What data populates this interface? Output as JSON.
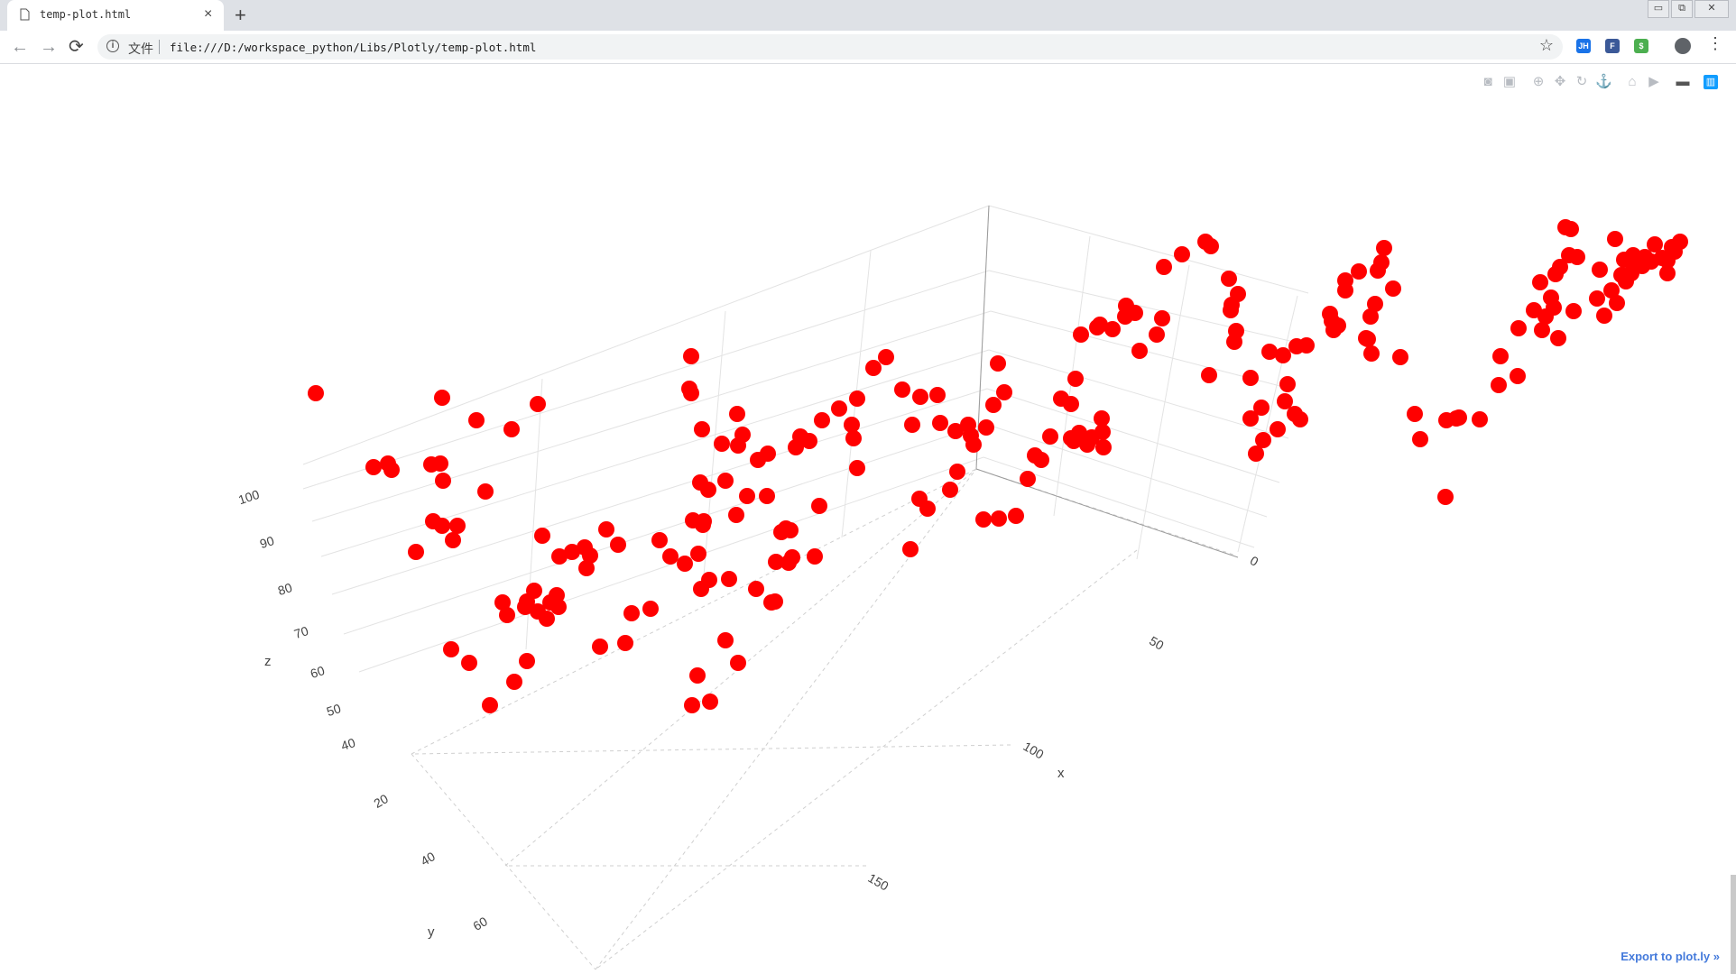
{
  "browser": {
    "tab_title": "temp-plot.html",
    "tab_close": "×",
    "new_tab": "+",
    "origin_label": "文件",
    "url": "file:///D:/workspace_python/Libs/Plotly/temp-plot.html",
    "window_controls": [
      "minimize",
      "restore",
      "close"
    ],
    "extensions": [
      {
        "name": "JH",
        "color": "#1a73e8"
      },
      {
        "name": "F",
        "color": "#3b5998"
      },
      {
        "name": "$",
        "color": "#4caf50"
      }
    ]
  },
  "modebar": {
    "buttons": [
      "camera-icon",
      "save-icon",
      "zoom-icon",
      "pan-icon",
      "orbit-icon",
      "turntable-icon",
      "home-icon",
      "video-icon",
      "toggle-hover-icon",
      "plotly-logo-icon"
    ]
  },
  "footer": {
    "export_link": "Export to plot.ly »"
  },
  "chart_data": {
    "type": "scatter3d",
    "marker_color": "#ff0000",
    "background": "#ffffff",
    "x_axis": {
      "title": "x",
      "ticks": [
        "0",
        "50",
        "100",
        "150"
      ],
      "range": [
        0,
        190
      ]
    },
    "y_axis": {
      "title": "y",
      "ticks": [
        "20",
        "40",
        "60"
      ],
      "range": [
        0,
        70
      ]
    },
    "z_axis": {
      "title": "z",
      "ticks": [
        "40",
        "50",
        "60",
        "70",
        "80",
        "90",
        "100"
      ],
      "range": [
        35,
        105
      ]
    },
    "grid": true,
    "points": [
      [
        350,
        436
      ],
      [
        414,
        518
      ],
      [
        430,
        514
      ],
      [
        434,
        521
      ],
      [
        490,
        441
      ],
      [
        528,
        466
      ],
      [
        507,
        583
      ],
      [
        478,
        515
      ],
      [
        488,
        514
      ],
      [
        491,
        533
      ],
      [
        596,
        448
      ],
      [
        567,
        476
      ],
      [
        538,
        545
      ],
      [
        502,
        599
      ],
      [
        490,
        583
      ],
      [
        480,
        578
      ],
      [
        461,
        612
      ],
      [
        500,
        720
      ],
      [
        520,
        735
      ],
      [
        543,
        782
      ],
      [
        570,
        756
      ],
      [
        584,
        733
      ],
      [
        596,
        678
      ],
      [
        592,
        655
      ],
      [
        601,
        594
      ],
      [
        606,
        686
      ],
      [
        617,
        660
      ],
      [
        562,
        682
      ],
      [
        557,
        668
      ],
      [
        584,
        667
      ],
      [
        582,
        673
      ],
      [
        610,
        668
      ],
      [
        619,
        673
      ],
      [
        620,
        617
      ],
      [
        634,
        612
      ],
      [
        650,
        630
      ],
      [
        672,
        587
      ],
      [
        648,
        607
      ],
      [
        654,
        616
      ],
      [
        665,
        717
      ],
      [
        693,
        713
      ],
      [
        685,
        604
      ],
      [
        700,
        680
      ],
      [
        721,
        675
      ],
      [
        731,
        599
      ],
      [
        743,
        617
      ],
      [
        774,
        614
      ],
      [
        780,
        578
      ],
      [
        759,
        625
      ],
      [
        768,
        577
      ],
      [
        804,
        710
      ],
      [
        777,
        653
      ],
      [
        773,
        749
      ],
      [
        786,
        643
      ],
      [
        776,
        535
      ],
      [
        778,
        476
      ],
      [
        764,
        431
      ],
      [
        804,
        533
      ],
      [
        817,
        459
      ],
      [
        816,
        571
      ],
      [
        828,
        550
      ],
      [
        840,
        510
      ],
      [
        850,
        550
      ],
      [
        866,
        590
      ],
      [
        860,
        623
      ],
      [
        874,
        624
      ],
      [
        787,
        778
      ],
      [
        818,
        735
      ],
      [
        808,
        642
      ],
      [
        767,
        782
      ],
      [
        766,
        395
      ],
      [
        779,
        582
      ],
      [
        766,
        436
      ],
      [
        785,
        543
      ],
      [
        800,
        492
      ],
      [
        818,
        494
      ],
      [
        823,
        482
      ],
      [
        851,
        503
      ],
      [
        838,
        653
      ],
      [
        859,
        667
      ],
      [
        855,
        668
      ],
      [
        878,
        618
      ],
      [
        903,
        617
      ],
      [
        908,
        561
      ],
      [
        871,
        586
      ],
      [
        876,
        588
      ],
      [
        882,
        496
      ],
      [
        887,
        484
      ],
      [
        897,
        489
      ],
      [
        911,
        466
      ],
      [
        930,
        453
      ],
      [
        944,
        471
      ],
      [
        946,
        486
      ],
      [
        950,
        519
      ],
      [
        950,
        442
      ],
      [
        968,
        408
      ],
      [
        982,
        396
      ],
      [
        1000,
        432
      ],
      [
        1011,
        471
      ],
      [
        1020,
        440
      ],
      [
        1039,
        438
      ],
      [
        1042,
        469
      ],
      [
        1059,
        478
      ],
      [
        1019,
        553
      ],
      [
        1009,
        609
      ],
      [
        1028,
        564
      ],
      [
        1053,
        543
      ],
      [
        1061,
        523
      ],
      [
        1073,
        471
      ],
      [
        1076,
        483
      ],
      [
        1079,
        493
      ],
      [
        1093,
        474
      ],
      [
        1101,
        449
      ],
      [
        1106,
        403
      ],
      [
        1113,
        435
      ],
      [
        1090,
        576
      ],
      [
        1107,
        575
      ],
      [
        1126,
        572
      ],
      [
        1139,
        531
      ],
      [
        1147,
        505
      ],
      [
        1154,
        510
      ],
      [
        1164,
        484
      ],
      [
        1176,
        442
      ],
      [
        1187,
        448
      ],
      [
        1187,
        486
      ],
      [
        1190,
        489
      ],
      [
        1196,
        480
      ],
      [
        1205,
        493
      ],
      [
        1210,
        485
      ],
      [
        1222,
        479
      ],
      [
        1221,
        464
      ],
      [
        1223,
        496
      ],
      [
        1192,
        420
      ],
      [
        1198,
        371
      ],
      [
        1219,
        360
      ],
      [
        1216,
        363
      ],
      [
        1233,
        365
      ],
      [
        1247,
        351
      ],
      [
        1248,
        339
      ],
      [
        1258,
        347
      ],
      [
        1263,
        389
      ],
      [
        1282,
        371
      ],
      [
        1288,
        353
      ],
      [
        1290,
        296
      ],
      [
        1310,
        282
      ],
      [
        1336,
        268
      ],
      [
        1342,
        273
      ],
      [
        1364,
        344
      ],
      [
        1372,
        326
      ],
      [
        1365,
        338
      ],
      [
        1362,
        309
      ],
      [
        1370,
        367
      ],
      [
        1368,
        379
      ],
      [
        1340,
        416
      ],
      [
        1386,
        464
      ],
      [
        1398,
        452
      ],
      [
        1416,
        476
      ],
      [
        1400,
        488
      ],
      [
        1392,
        503
      ],
      [
        1386,
        419
      ],
      [
        1407,
        390
      ],
      [
        1422,
        394
      ],
      [
        1427,
        426
      ],
      [
        1424,
        445
      ],
      [
        1435,
        459
      ],
      [
        1441,
        465
      ],
      [
        1437,
        384
      ],
      [
        1448,
        383
      ],
      [
        1476,
        356
      ],
      [
        1478,
        366
      ],
      [
        1483,
        361
      ],
      [
        1474,
        348
      ],
      [
        1491,
        311
      ],
      [
        1491,
        322
      ],
      [
        1506,
        301
      ],
      [
        1516,
        376
      ],
      [
        1520,
        392
      ],
      [
        1514,
        375
      ],
      [
        1519,
        351
      ],
      [
        1524,
        337
      ],
      [
        1527,
        300
      ],
      [
        1531,
        291
      ],
      [
        1534,
        275
      ],
      [
        1544,
        320
      ],
      [
        1552,
        396
      ],
      [
        1568,
        459
      ],
      [
        1574,
        487
      ],
      [
        1602,
        551
      ],
      [
        1614,
        464
      ],
      [
        1603,
        466
      ],
      [
        1617,
        463
      ],
      [
        1640,
        465
      ],
      [
        1661,
        427
      ],
      [
        1663,
        395
      ],
      [
        1682,
        417
      ],
      [
        1683,
        364
      ],
      [
        1700,
        344
      ],
      [
        1709,
        366
      ],
      [
        1713,
        351
      ],
      [
        1727,
        375
      ],
      [
        1719,
        330
      ],
      [
        1722,
        341
      ],
      [
        1707,
        313
      ],
      [
        1724,
        304
      ],
      [
        1729,
        296
      ],
      [
        1739,
        283
      ],
      [
        1748,
        285
      ],
      [
        1735,
        252
      ],
      [
        1741,
        254
      ],
      [
        1744,
        345
      ],
      [
        1778,
        350
      ],
      [
        1770,
        331
      ],
      [
        1786,
        322
      ],
      [
        1797,
        305
      ],
      [
        1808,
        303
      ],
      [
        1820,
        295
      ],
      [
        1823,
        285
      ],
      [
        1830,
        290
      ],
      [
        1792,
        336
      ],
      [
        1802,
        312
      ],
      [
        1773,
        299
      ],
      [
        1790,
        265
      ],
      [
        1800,
        288
      ],
      [
        1810,
        283
      ],
      [
        1812,
        296
      ],
      [
        1834,
        271
      ],
      [
        1842,
        286
      ],
      [
        1848,
        289
      ],
      [
        1853,
        274
      ],
      [
        1856,
        279
      ],
      [
        1862,
        268
      ],
      [
        1848,
        303
      ]
    ]
  }
}
